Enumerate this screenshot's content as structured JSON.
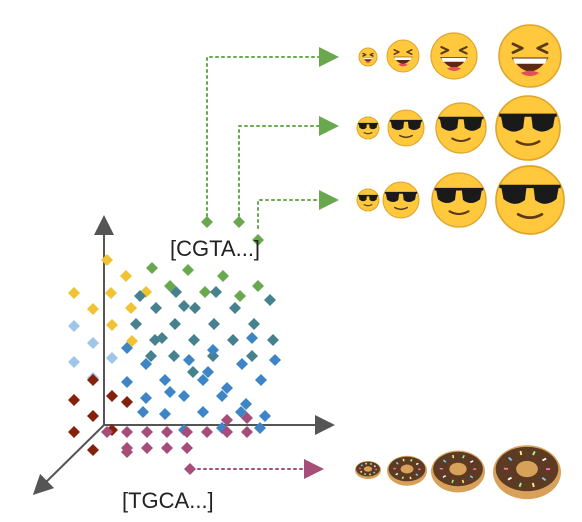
{
  "labels": {
    "top_sequence": "[CGTA...]",
    "bottom_sequence": "[TGCA...]"
  },
  "icons": {
    "row1": "laughing-face-icon",
    "row2": "sunglasses-face-icon",
    "row3": "sunglasses-face-icon",
    "row4": "donut-icon"
  },
  "colors": {
    "axis": "#555555",
    "green": "#6aa84f",
    "yellow": "#f1c232",
    "light_blue": "#9fc5e8",
    "dark_red": "#85200c",
    "teal": "#45818e",
    "blue": "#3d85c6",
    "magenta": "#a64d79",
    "emoji_yellow": "#ffc83d",
    "donut_dough": "#d8a15a",
    "donut_icing": "#5d3a24"
  }
}
